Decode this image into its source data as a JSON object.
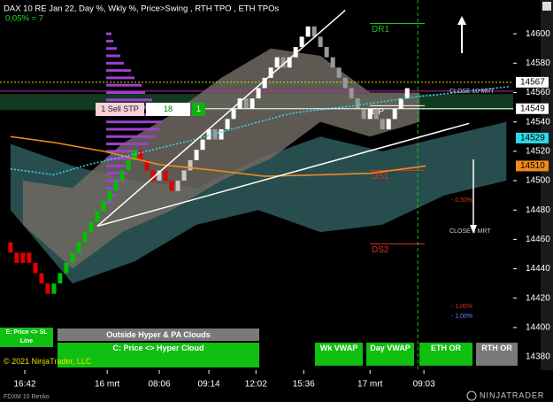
{
  "chart_data": {
    "type": "renko",
    "title": "DAX 10 RE Jan 22, Day %, Wkly %, Price>Swing , RTH TPO , ETH TPOs",
    "subtitle": "0,05% = 7",
    "brick_size": 7,
    "xlim": [
      -1.7,
      81.1
    ],
    "ylim": [
      14371,
      14623
    ],
    "yticks": [
      14380,
      14400,
      14420,
      14440,
      14460,
      14480,
      14500,
      14520,
      14540,
      14560,
      14580,
      14600
    ],
    "xticks": [
      {
        "value": 2.3,
        "label": "16:42"
      },
      {
        "value": 15.6,
        "label": "16 mrt"
      },
      {
        "value": 24,
        "label": "08:06"
      },
      {
        "value": 32,
        "label": "09:14"
      },
      {
        "value": 39.6,
        "label": "12:02"
      },
      {
        "value": 47.3,
        "label": "15:36"
      },
      {
        "value": 58,
        "label": "17 mrt"
      },
      {
        "value": 66.7,
        "label": "09:03"
      }
    ],
    "segments": [
      {
        "up_color": "#e00000",
        "down_color": "#e00000",
        "values": [
          14451,
          14444,
          14451,
          14444,
          14437,
          14430,
          14423
        ]
      },
      {
        "up_color": "#00c000",
        "down_color": "#e00000",
        "values": [
          14430,
          14437,
          14444,
          14451,
          14458,
          14465,
          14472,
          14479,
          14486,
          14493,
          14500,
          14507,
          14514,
          14521
        ]
      },
      {
        "up_color": "#c8c8c8",
        "down_color": "#e00000",
        "values": [
          14514,
          14507,
          14500,
          14507,
          14500,
          14493,
          14500,
          14507,
          14514
        ]
      },
      {
        "up_color": "#ffffff",
        "down_color": "#9a9a9a",
        "values": [
          14521,
          14528,
          14535,
          14528,
          14535,
          14542,
          14549,
          14556,
          14549,
          14556,
          14563,
          14570,
          14577,
          14584,
          14577,
          14584,
          14591,
          14598,
          14605
        ]
      },
      {
        "up_color": "#ffffff",
        "down_color": "#9a9a9a",
        "values": [
          14598,
          14591,
          14584,
          14577,
          14570,
          14563,
          14556,
          14549,
          14542,
          14549,
          14542,
          14535,
          14542,
          14549,
          14556,
          14563
        ]
      }
    ],
    "clouds": [
      {
        "color": "#2f5a5c",
        "x": [
          0,
          10,
          20,
          30,
          40,
          50,
          60,
          70,
          80
        ],
        "upper": [
          14525,
          14510,
          14500,
          14495,
          14515,
          14530,
          14520,
          14530,
          14540
        ],
        "lower": [
          14480,
          14430,
          14445,
          14470,
          14480,
          14465,
          14470,
          14490,
          14500
        ]
      },
      {
        "color": "#6e6a62",
        "x": [
          2,
          10,
          18,
          26,
          34,
          42,
          50,
          58,
          66
        ],
        "upper": [
          14500,
          14495,
          14525,
          14545,
          14570,
          14590,
          14585,
          14560,
          14560
        ],
        "lower": [
          14470,
          14440,
          14465,
          14480,
          14500,
          14515,
          14540,
          14530,
          14540
        ]
      }
    ],
    "lines": [
      {
        "color": "#f08a1c",
        "dash": false,
        "x": [
          0,
          7,
          15,
          24,
          33,
          41,
          50,
          58,
          67
        ],
        "values": [
          14530,
          14526,
          14520,
          14511,
          14507,
          14503,
          14504,
          14505,
          14510
        ]
      },
      {
        "color": "#30d8e8",
        "dash": true,
        "x": [
          0,
          7,
          12.6,
          21,
          29.7,
          38.3,
          45.4,
          55.4,
          65.4,
          80.4
        ],
        "values": [
          14508,
          14504,
          14511,
          14519,
          14528,
          14538,
          14546,
          14551,
          14557,
          14564
        ]
      }
    ],
    "trendlines": [
      {
        "color": "#ffffff",
        "x": [
          14,
          54
        ],
        "values": [
          14469,
          14616
        ]
      },
      {
        "color": "#ffffff",
        "x": [
          14,
          74
        ],
        "values": [
          14469,
          14539
        ]
      }
    ],
    "band": {
      "color": "#123a22",
      "values": [
        14548,
        14559
      ]
    },
    "hlines": [
      {
        "color": "#c020c0",
        "dash": false,
        "value": 14561
      },
      {
        "color": "#e0e000",
        "dash": true,
        "value": 14567
      }
    ],
    "tpo": {
      "color": "#a040d0",
      "levels": [
        14485,
        14490,
        14495,
        14500,
        14505,
        14510,
        14515,
        14520,
        14525,
        14530,
        14535,
        14540,
        14545,
        14550,
        14555,
        14560,
        14565,
        14570,
        14575,
        14580,
        14585,
        14590,
        14595,
        14600
      ],
      "counts": [
        4,
        6,
        8,
        10,
        12,
        14,
        16,
        20,
        24,
        28,
        30,
        32,
        30,
        28,
        26,
        22,
        20,
        16,
        14,
        10,
        8,
        6,
        4,
        3
      ]
    },
    "levels": [
      {
        "label": "DR1",
        "value": 14607,
        "color": "#20c020"
      },
      {
        "label": "DP",
        "value": 14551,
        "color": "#ffffff"
      },
      {
        "label": "DS1",
        "value": 14507,
        "color": "#e03020"
      },
      {
        "label": "DS2",
        "value": 14457,
        "color": "#e03020"
      }
    ],
    "price_markers": [
      {
        "value": 14567,
        "color": "#ffffff"
      },
      {
        "value": 14549,
        "color": "#ffffff"
      },
      {
        "value": 14529,
        "color": "#30d8e8"
      },
      {
        "value": 14510,
        "color": "#f08a1c"
      }
    ],
    "session_x": 65.7,
    "annotations": [
      "CLOSE 10 MRT",
      "CLOSE 5 MRT",
      "- 0,50%",
      "- 1,00%",
      "- 1,00%"
    ]
  },
  "order": {
    "label": "1 Sell STP",
    "quantity": "18",
    "count": "1"
  },
  "panels": {
    "e": "E: Price <> SL Line",
    "outside": "Outside Hyper & PA Clouds",
    "c": "C: Price <> Hyper Cloud",
    "copyright": "© 2021 NinjaTrader, LLC",
    "wk": "Wk VWAP",
    "day": "Day VWAP",
    "eth": "ETH OR",
    "rth": "RTH OR"
  },
  "footer": {
    "instrument": "FDXM 10 Renko",
    "logo": "NINJATRADER"
  }
}
